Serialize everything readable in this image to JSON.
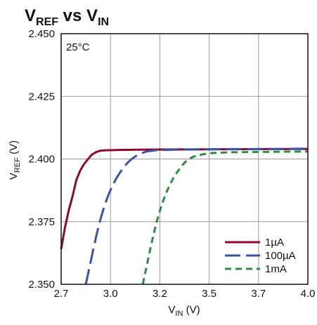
{
  "chart_data": {
    "type": "line",
    "title": {
      "main": "V",
      "main_sub": "REF",
      "mid": " vs ",
      "tail": "V",
      "tail_sub": "IN"
    },
    "xlabel": {
      "main": "V",
      "sub": "IN",
      "unit": " (V)"
    },
    "ylabel": {
      "main": "V",
      "sub": "REF",
      "unit": " (V)"
    },
    "annotation": "25°C",
    "xlim": [
      2.7,
      4.0
    ],
    "ylim": [
      2.35,
      2.45
    ],
    "x_ticks": [
      {
        "value": 2.7,
        "label": "2.7"
      },
      {
        "value": 2.96,
        "label": "3.0"
      },
      {
        "value": 3.22,
        "label": "3.2"
      },
      {
        "value": 3.48,
        "label": "3.5"
      },
      {
        "value": 3.74,
        "label": "3.7"
      },
      {
        "value": 4.0,
        "label": "4.0"
      }
    ],
    "y_ticks": [
      {
        "value": 2.35,
        "label": "2.350"
      },
      {
        "value": 2.375,
        "label": "2.375"
      },
      {
        "value": 2.4,
        "label": "2.400"
      },
      {
        "value": 2.425,
        "label": "2.425"
      },
      {
        "value": 2.45,
        "label": "2.450"
      }
    ],
    "grid": true,
    "legend_position": "bottom-right",
    "series": [
      {
        "name": "1µA",
        "color": "#8b0a2a",
        "dash": "solid",
        "x": [
          2.7,
          2.72,
          2.74,
          2.76,
          2.78,
          2.8,
          2.82,
          2.84,
          2.86,
          2.88,
          2.9,
          2.92,
          2.94,
          2.96,
          3.0,
          3.1,
          3.3,
          3.6,
          4.0
        ],
        "y": [
          2.364,
          2.3726,
          2.3795,
          2.3851,
          2.3916,
          2.3953,
          2.3979,
          2.3998,
          2.4016,
          2.4026,
          2.4032,
          2.4034,
          2.4035,
          2.4035,
          2.4036,
          2.4037,
          2.4038,
          2.4039,
          2.404
        ]
      },
      {
        "name": "100µA",
        "color": "#3a53a4",
        "dash": "long",
        "x": [
          2.83,
          2.85,
          2.87,
          2.89,
          2.91,
          2.93,
          2.95,
          2.97,
          2.99,
          3.01,
          3.03,
          3.05,
          3.07,
          3.09,
          3.11,
          3.15,
          3.2,
          3.3,
          3.5,
          4.0
        ],
        "y": [
          2.35,
          2.357,
          2.3642,
          2.3709,
          2.3767,
          2.3818,
          2.3858,
          2.3893,
          2.3922,
          2.3946,
          2.3967,
          2.3985,
          2.3999,
          2.401,
          2.4019,
          2.403,
          2.4035,
          2.4037,
          2.4039,
          2.4041
        ]
      },
      {
        "name": "1mA",
        "color": "#2e8b45",
        "dash": "short",
        "x": [
          3.13,
          3.15,
          3.17,
          3.19,
          3.21,
          3.23,
          3.25,
          3.27,
          3.29,
          3.31,
          3.33,
          3.35,
          3.37,
          3.4,
          3.45,
          3.5,
          3.6,
          4.0
        ],
        "y": [
          2.35,
          2.357,
          2.3642,
          2.3709,
          2.3767,
          2.3818,
          2.3858,
          2.3893,
          2.3922,
          2.3946,
          2.3967,
          2.3985,
          2.3999,
          2.401,
          2.4019,
          2.4024,
          2.4027,
          2.403
        ]
      }
    ]
  }
}
